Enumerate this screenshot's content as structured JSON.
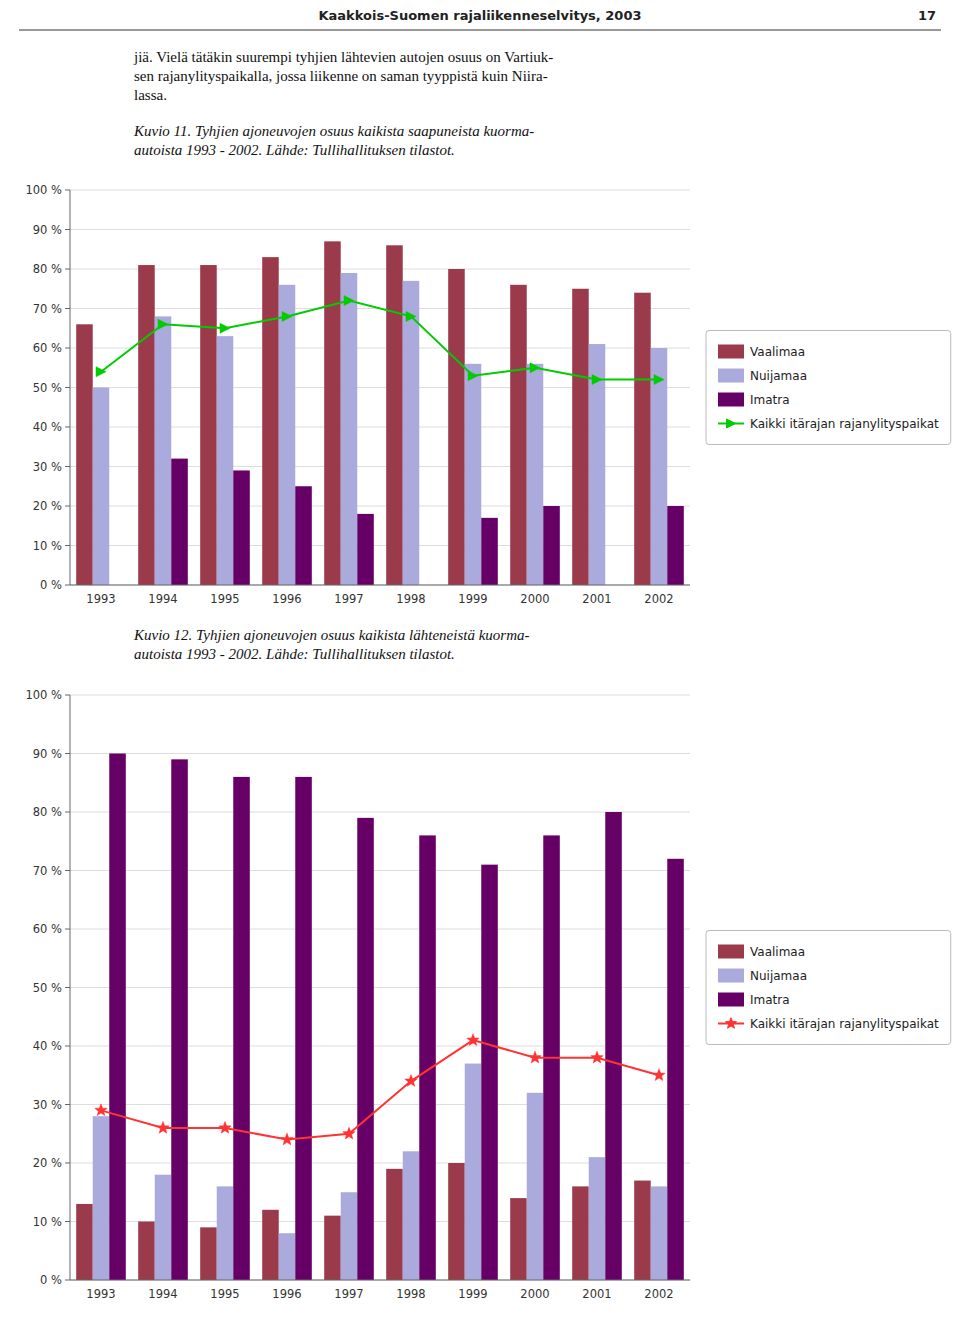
{
  "page_header": "Kaakkois-Suomen rajaliikenneselvitys, 2003",
  "page_number": "17",
  "body_text": [
    "jiä. Vielä tätäkin suurempi tyhjien lähtevien autojen osuus on Vartiuk-",
    "sen rajanylityspaikalla, jossa liikenne on saman tyyppistä kuin Niira-",
    "lassa."
  ],
  "chart_data": [
    {
      "type": "bar",
      "title": "Kuvio  11.  Tyhjien ajoneuvojen osuus kaikista saapuneista kuorma-",
      "subtitle": "autoista 1993 - 2002. Lähde: Tullihallituksen tilastot.",
      "categories": [
        "1993",
        "1994",
        "1995",
        "1996",
        "1997",
        "1998",
        "1999",
        "2000",
        "2001",
        "2002"
      ],
      "series": [
        {
          "name": "Vaalimaa",
          "type": "bar",
          "color": "#9B3A4A",
          "values": [
            66,
            81,
            81,
            83,
            87,
            86,
            80,
            76,
            75,
            74
          ]
        },
        {
          "name": "Nuijamaa",
          "type": "bar",
          "color": "#AAAADD",
          "values": [
            50,
            68,
            63,
            76,
            79,
            77,
            56,
            56,
            61,
            60
          ]
        },
        {
          "name": "Imatra",
          "type": "bar",
          "color": "#660066",
          "values": [
            0,
            32,
            29,
            25,
            18,
            0,
            17,
            20,
            0,
            20
          ]
        },
        {
          "name": "Kaikki itärajan rajanylityspaikat",
          "type": "line",
          "color": "#00CC00",
          "marker": "triangle-right",
          "values": [
            54,
            66,
            65,
            68,
            72,
            68,
            53,
            55,
            52,
            52
          ]
        }
      ],
      "ylim": [
        0,
        100
      ],
      "yticks": [
        {
          "value": 0,
          "label": "0 %"
        },
        {
          "value": 10,
          "label": "10 %"
        },
        {
          "value": 20,
          "label": "20 %"
        },
        {
          "value": 30,
          "label": "30 %"
        },
        {
          "value": 40,
          "label": "40 %"
        },
        {
          "value": 50,
          "label": "50 %"
        },
        {
          "value": 60,
          "label": "60 %"
        },
        {
          "value": 70,
          "label": "70 %"
        },
        {
          "value": 80,
          "label": "80 %"
        },
        {
          "value": 90,
          "label": "90 %"
        },
        {
          "value": 100,
          "label": "100 %"
        }
      ],
      "grid": true,
      "legend": "right"
    },
    {
      "type": "bar",
      "title": "Kuvio  12.  Tyhjien ajoneuvojen osuus kaikista lähteneistä kuorma-",
      "subtitle": "autoista 1993 - 2002. Lähde: Tullihallituksen tilastot.",
      "categories": [
        "1993",
        "1994",
        "1995",
        "1996",
        "1997",
        "1998",
        "1999",
        "2000",
        "2001",
        "2002"
      ],
      "series": [
        {
          "name": "Vaalimaa",
          "type": "bar",
          "color": "#9B3A4A",
          "values": [
            13,
            10,
            9,
            12,
            11,
            19,
            20,
            14,
            16,
            17
          ]
        },
        {
          "name": "Nuijamaa",
          "type": "bar",
          "color": "#AAAADD",
          "values": [
            28,
            18,
            16,
            8,
            15,
            22,
            37,
            32,
            21,
            16
          ]
        },
        {
          "name": "Imatra",
          "type": "bar",
          "color": "#660066",
          "values": [
            90,
            89,
            86,
            86,
            79,
            76,
            71,
            76,
            80,
            72
          ]
        },
        {
          "name": "Kaikki itärajan rajanylityspaikat",
          "type": "line",
          "color": "#FF3333",
          "marker": "star",
          "values": [
            29,
            26,
            26,
            24,
            25,
            34,
            41,
            38,
            38,
            35
          ]
        }
      ],
      "ylim": [
        0,
        100
      ],
      "yticks": [
        {
          "value": 0,
          "label": "0 %"
        },
        {
          "value": 10,
          "label": "10 %"
        },
        {
          "value": 20,
          "label": "20 %"
        },
        {
          "value": 30,
          "label": "30 %"
        },
        {
          "value": 40,
          "label": "40 %"
        },
        {
          "value": 50,
          "label": "50 %"
        },
        {
          "value": 60,
          "label": "60 %"
        },
        {
          "value": 70,
          "label": "70 %"
        },
        {
          "value": 80,
          "label": "80 %"
        },
        {
          "value": 90,
          "label": "90 %"
        },
        {
          "value": 100,
          "label": "100 %"
        }
      ],
      "grid": true,
      "legend": "right"
    }
  ]
}
